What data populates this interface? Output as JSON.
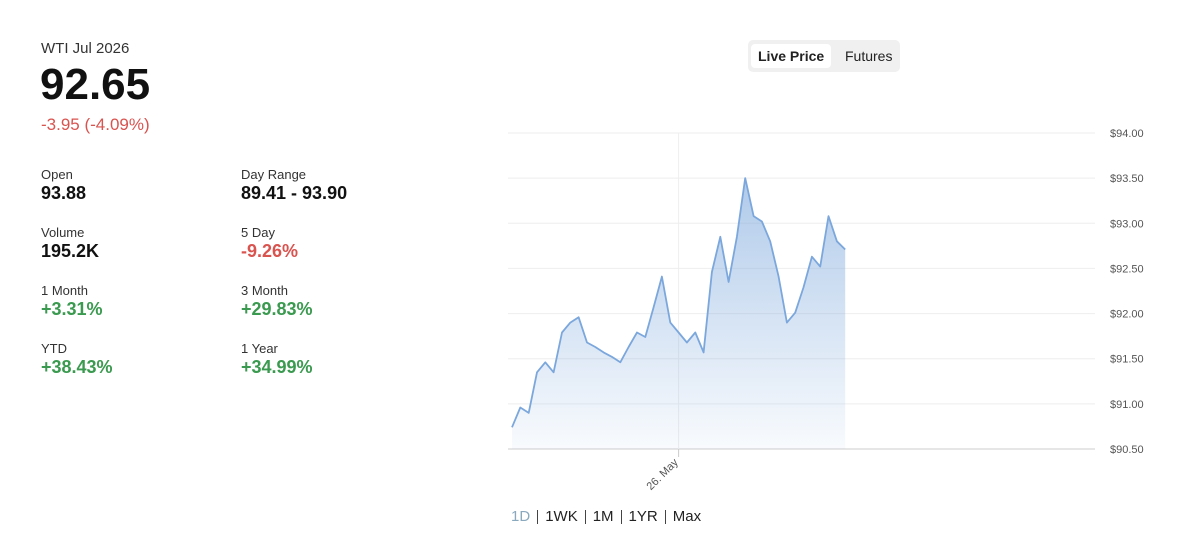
{
  "header": {
    "title": "WTI Jul 2026",
    "price": "92.65",
    "change": "-3.95 (-4.09%)"
  },
  "stats": [
    {
      "label": "Open",
      "value": "93.88"
    },
    {
      "label": "Day Range",
      "value": "89.41 - 93.90"
    },
    {
      "label": "Volume",
      "value": "195.2K"
    },
    {
      "label": "5 Day",
      "value": "-9.26%"
    },
    {
      "label": "1 Month",
      "value": "+3.31%"
    },
    {
      "label": "3 Month",
      "value": "+29.83%"
    },
    {
      "label": "YTD",
      "value": "+38.43%"
    },
    {
      "label": "1 Year",
      "value": "+34.99%"
    }
  ],
  "tabs": [
    "Live Price",
    "Futures"
  ],
  "ranges": [
    "1D",
    "1WK",
    "1M",
    "1YR",
    "Max"
  ],
  "chart_data": {
    "type": "line",
    "color": "#7ba7dc",
    "categories": [
      null,
      null,
      null,
      null,
      null,
      null,
      null,
      null,
      null,
      null,
      null,
      null,
      null,
      null,
      null,
      null,
      null,
      null,
      null,
      null,
      "26. May",
      null,
      null,
      null,
      null,
      null,
      null,
      null,
      null,
      null,
      null,
      null,
      null,
      null,
      null,
      null,
      null,
      null,
      null,
      null,
      null
    ],
    "values": [
      90.74,
      90.96,
      90.9,
      91.35,
      91.46,
      91.35,
      91.79,
      91.9,
      91.96,
      91.68,
      91.63,
      91.57,
      91.52,
      91.46,
      91.63,
      91.79,
      91.74,
      92.07,
      92.41,
      91.9,
      91.79,
      91.68,
      91.79,
      91.57,
      92.46,
      92.85,
      92.35,
      92.85,
      93.5,
      93.08,
      93.02,
      92.8,
      92.41,
      91.9,
      92.01,
      92.29,
      92.63,
      92.52,
      93.08,
      92.8,
      92.71
    ],
    "ylim": [
      90.5,
      94.0
    ],
    "yticks": [
      {
        "value": 90.5,
        "label": "$90.50"
      },
      {
        "value": 91,
        "label": "$91.00"
      },
      {
        "value": 91.5,
        "label": "$91.50"
      },
      {
        "value": 92,
        "label": "$92.00"
      },
      {
        "value": 92.5,
        "label": "$92.50"
      },
      {
        "value": 93,
        "label": "$93.00"
      },
      {
        "value": 93.5,
        "label": "$93.50"
      },
      {
        "value": 94,
        "label": "$94.00"
      }
    ],
    "grid": true
  }
}
